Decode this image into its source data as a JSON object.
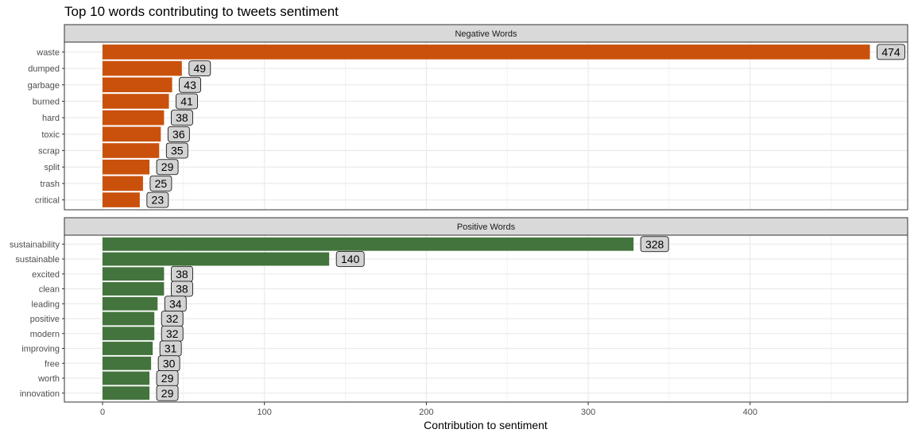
{
  "chart_data": {
    "type": "bar",
    "orientation": "horizontal",
    "title": "Top 10 words contributing to tweets sentiment",
    "xlabel": "Contribution to sentiment",
    "ylabel": "",
    "xlim": [
      0,
      475
    ],
    "xticks": [
      0,
      100,
      200,
      300,
      400
    ],
    "grid": true,
    "data_labels": true,
    "panels": [
      {
        "name": "Negative Words",
        "color": "#C9510C",
        "categories": [
          "waste",
          "dumped",
          "garbage",
          "burned",
          "hard",
          "toxic",
          "scrap",
          "split",
          "trash",
          "critical"
        ],
        "values": [
          474,
          49,
          43,
          41,
          38,
          36,
          35,
          29,
          25,
          23
        ]
      },
      {
        "name": "Positive Words",
        "color": "#43743D",
        "categories": [
          "sustainability",
          "sustainable",
          "excited",
          "clean",
          "leading",
          "positive",
          "modern",
          "improving",
          "free",
          "worth",
          "innovation"
        ],
        "values": [
          328,
          140,
          38,
          38,
          34,
          32,
          32,
          31,
          30,
          29,
          29
        ]
      }
    ]
  }
}
